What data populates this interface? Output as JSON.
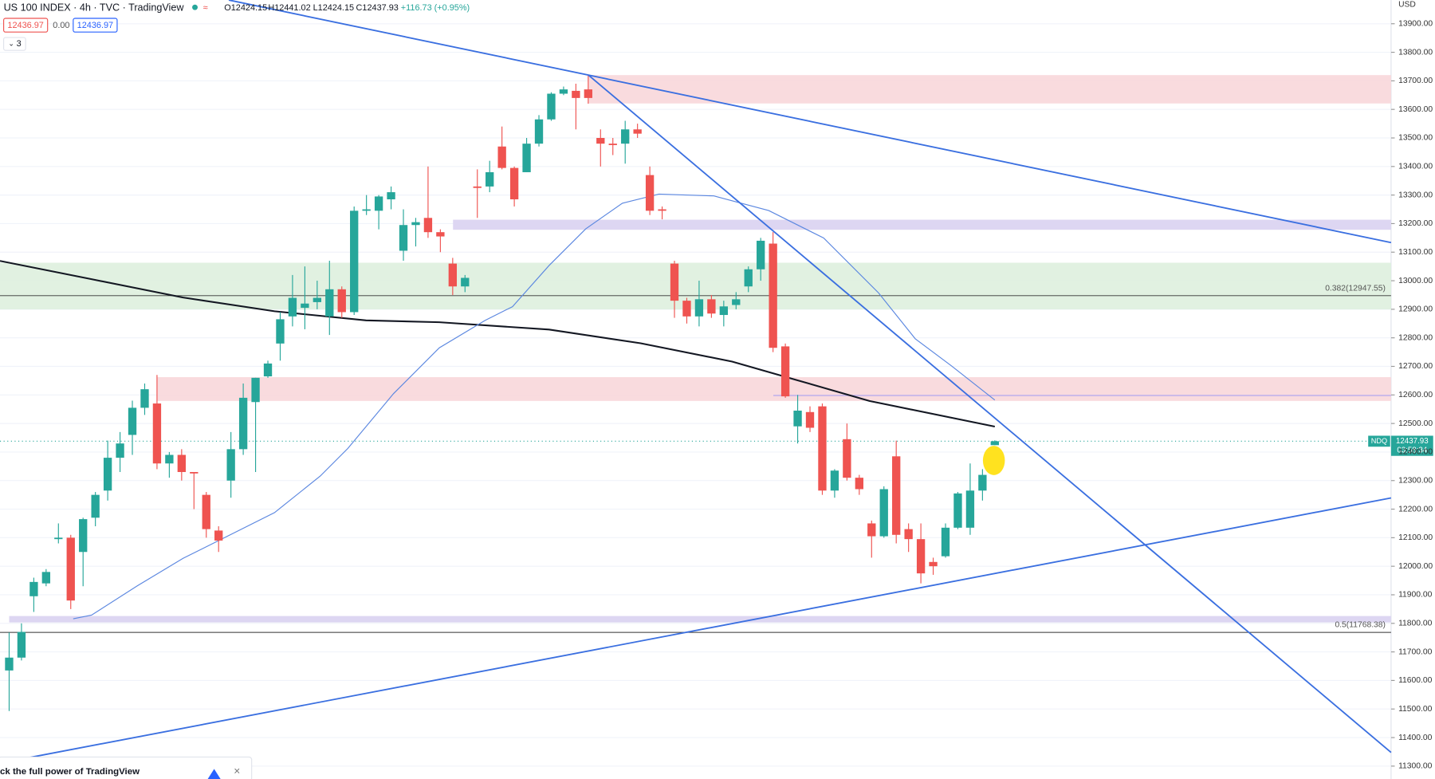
{
  "header": {
    "symbol": "US 100 INDEX · 4h · TVC · TradingView",
    "open": "O12424.15",
    "high": "H12441.02",
    "low": "L12424.15",
    "close": "C12437.93",
    "change": "+116.73 (+0.95%)",
    "sell": "12436.97",
    "spread": "0.00",
    "buy": "12436.97",
    "indicators": "3",
    "currency": "USD"
  },
  "price_tag": {
    "name": "NDQ",
    "price": "12437.93",
    "countdown": "03:58:34"
  },
  "banner": "ck the full power of TradingView",
  "chart_data": {
    "type": "candlestick",
    "open": [
      11635,
      11680,
      11895,
      11940,
      12095,
      12100,
      12050,
      12170,
      12265,
      12380,
      12460,
      12555,
      12570,
      12360,
      12390,
      12330,
      12250,
      12125,
      12300,
      12410,
      12575,
      12665,
      12780,
      12875,
      12905,
      12925,
      12875,
      12970,
      12890,
      13245,
      13245,
      13285,
      13105,
      13195,
      13220,
      13170,
      13060,
      12980,
      13330,
      13330,
      13470,
      13395,
      13380,
      13480,
      13565,
      13655,
      13665,
      13670,
      13500,
      13480,
      13480,
      13530,
      13370,
      13250,
      13060,
      12930,
      12875,
      12935,
      12880,
      12915,
      12980,
      13040,
      13130,
      12770,
      12490,
      12540,
      12560,
      12265,
      12445,
      12310,
      12150,
      12105,
      12385,
      12130,
      12095,
      12015,
      12035,
      12135,
      12135,
      12265,
      12424.15
    ],
    "high": [
      11768,
      11800,
      11960,
      11990,
      12150,
      12110,
      12170,
      12260,
      12440,
      12470,
      12580,
      12640,
      12670,
      12400,
      12410,
      12330,
      12260,
      12140,
      12470,
      12640,
      12660,
      12720,
      12890,
      13020,
      13050,
      13000,
      13070,
      12980,
      13260,
      13300,
      13300,
      13330,
      13250,
      13220,
      13400,
      13180,
      13080,
      13020,
      13390,
      13420,
      13540,
      13400,
      13500,
      13580,
      13660,
      13680,
      13690,
      13720,
      13530,
      13500,
      13560,
      13550,
      13400,
      13260,
      13070,
      12940,
      13000,
      12950,
      12930,
      12960,
      13050,
      13150,
      13170,
      12780,
      12600,
      12560,
      12570,
      12340,
      12500,
      12320,
      12160,
      12280,
      12440,
      12150,
      12150,
      12030,
      12150,
      12260,
      12360,
      12340,
      12441.02
    ],
    "low": [
      11493,
      11670,
      11840,
      11930,
      12080,
      11850,
      11930,
      12140,
      12230,
      12330,
      12390,
      12530,
      12340,
      12310,
      12300,
      12200,
      12100,
      12050,
      12240,
      12390,
      12330,
      12660,
      12720,
      12840,
      12830,
      12900,
      12810,
      12870,
      12880,
      13230,
      13180,
      13250,
      13070,
      13120,
      13150,
      13100,
      12950,
      12960,
      13220,
      13310,
      13390,
      13260,
      13380,
      13470,
      13560,
      13650,
      13530,
      13620,
      13400,
      13440,
      13410,
      13500,
      13230,
      13215,
      12870,
      12850,
      12840,
      12870,
      12840,
      12900,
      12960,
      13000,
      12750,
      12590,
      12430,
      12470,
      12250,
      12240,
      12300,
      12250,
      12030,
      12100,
      12080,
      12050,
      11940,
      11970,
      12030,
      12130,
      12110,
      12230,
      12424.15
    ],
    "close": [
      11680,
      11770,
      11945,
      11980,
      12100,
      11880,
      12165,
      12250,
      12380,
      12430,
      12555,
      12620,
      12360,
      12390,
      12330,
      12325,
      12130,
      12090,
      12410,
      12590,
      12660,
      12710,
      12865,
      12940,
      12920,
      12940,
      12970,
      12890,
      13245,
      13250,
      13295,
      13310,
      13195,
      13205,
      13170,
      13155,
      12980,
      13010,
      13325,
      13380,
      13395,
      13285,
      13480,
      13565,
      13655,
      13670,
      13640,
      13640,
      13480,
      13475,
      13530,
      13515,
      13245,
      13245,
      12930,
      12875,
      12935,
      12885,
      12910,
      12935,
      13040,
      13140,
      12765,
      12595,
      12545,
      12485,
      12265,
      12335,
      12310,
      12270,
      12105,
      12270,
      12110,
      12095,
      11975,
      12000,
      12135,
      12255,
      12265,
      12320,
      12437.93
    ],
    "up_color": "#26a69a",
    "down_color": "#ef5350",
    "ylim": [
      11255,
      13983
    ],
    "yticks": [
      {
        "value": 11300,
        "label": "11300.00"
      },
      {
        "value": 11400,
        "label": "11400.00"
      },
      {
        "value": 11500,
        "label": "11500.00"
      },
      {
        "value": 11600,
        "label": "11600.00"
      },
      {
        "value": 11700,
        "label": "11700.00"
      },
      {
        "value": 11800,
        "label": "11800.00"
      },
      {
        "value": 11900,
        "label": "11900.00"
      },
      {
        "value": 12000,
        "label": "12000.00"
      },
      {
        "value": 12100,
        "label": "12100.00"
      },
      {
        "value": 12200,
        "label": "12200.00"
      },
      {
        "value": 12300,
        "label": "12300.00"
      },
      {
        "value": 12400,
        "label": "12400.00"
      },
      {
        "value": 12500,
        "label": "12500.00"
      },
      {
        "value": 12600,
        "label": "12600.00"
      },
      {
        "value": 12700,
        "label": "12700.00"
      },
      {
        "value": 12800,
        "label": "12800.00"
      },
      {
        "value": 12900,
        "label": "12900.00"
      },
      {
        "value": 13000,
        "label": "13000.00"
      },
      {
        "value": 13100,
        "label": "13100.00"
      },
      {
        "value": 13200,
        "label": "13200.00"
      },
      {
        "value": 13300,
        "label": "13300.00"
      },
      {
        "value": 13400,
        "label": "13400.00"
      },
      {
        "value": 13500,
        "label": "13500.00"
      },
      {
        "value": 13600,
        "label": "13600.00"
      },
      {
        "value": 13700,
        "label": "13700.00"
      },
      {
        "value": 13800,
        "label": "13800.00"
      },
      {
        "value": 13900,
        "label": "13900.00"
      }
    ],
    "fib_levels": [
      {
        "value": 12947.55,
        "label": "0.382(12947.55)"
      },
      {
        "value": 11768.38,
        "label": "0.5(11768.38)"
      }
    ]
  }
}
